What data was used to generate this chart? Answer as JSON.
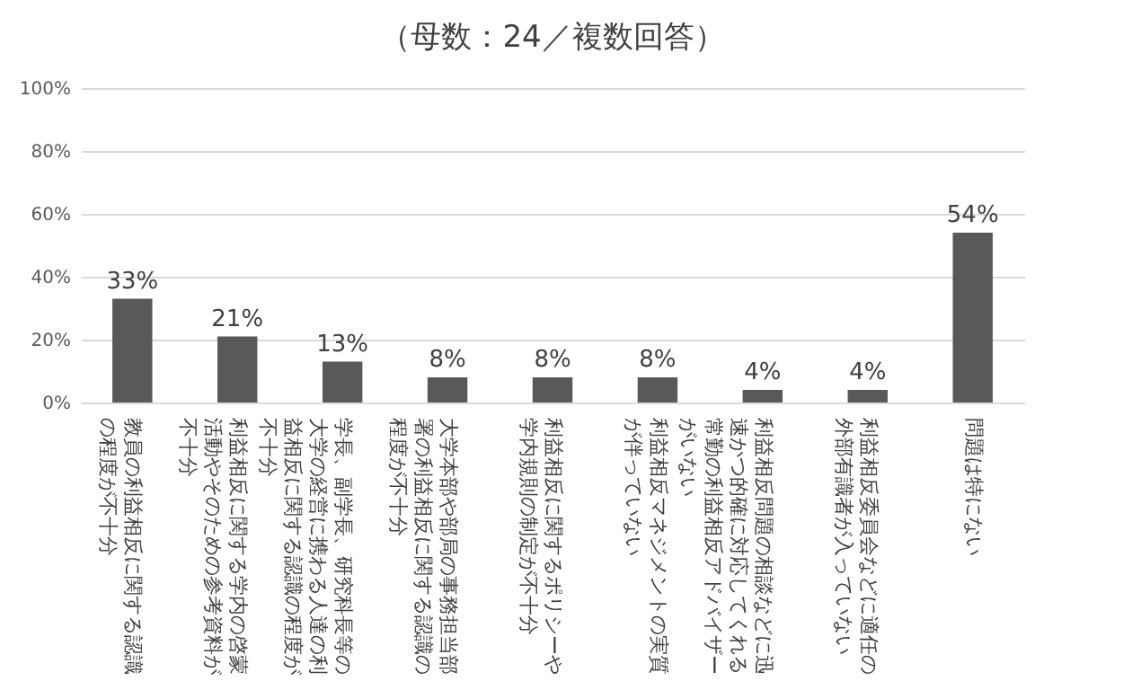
{
  "chart_data": {
    "type": "bar",
    "title": "（母数：24／複数回答）",
    "categories": [
      "教員の利益相反に関する認識の程度が不十分",
      "利益相反に関する学内の啓蒙活動やそのための参考資料が不十分",
      "学長、副学長、研究科長等の大学の経営に携わる人達の利益相反に関する認識の程度が不十分",
      "大学本部や部局の事務担当部署の利益相反に関する認識の程度が不十分",
      "利益相反に関するポリシーや学内規則の制定が不十分",
      "利益相反マネジメントの実質が伴っていない",
      "利益相反問題の相談などに迅速かつ的確に対応してくれる常勤の利益相反アドバイザーがいない",
      "利益相反委員会などに適任の外部有識者が入っていない",
      "問題は特にない"
    ],
    "values": [
      33,
      21,
      13,
      8,
      8,
      8,
      4,
      4,
      54
    ],
    "value_labels": [
      "33%",
      "21%",
      "13%",
      "8%",
      "8%",
      "8%",
      "4%",
      "4%",
      "54%"
    ],
    "color": "#595959",
    "ylim": [
      0,
      100
    ],
    "yticks": [
      {
        "value": 0,
        "label": "0%"
      },
      {
        "value": 20,
        "label": "20%"
      },
      {
        "value": 40,
        "label": "40%"
      },
      {
        "value": 60,
        "label": "60%"
      },
      {
        "value": 80,
        "label": "80%"
      },
      {
        "value": 100,
        "label": "100%"
      }
    ],
    "grid": "y"
  }
}
